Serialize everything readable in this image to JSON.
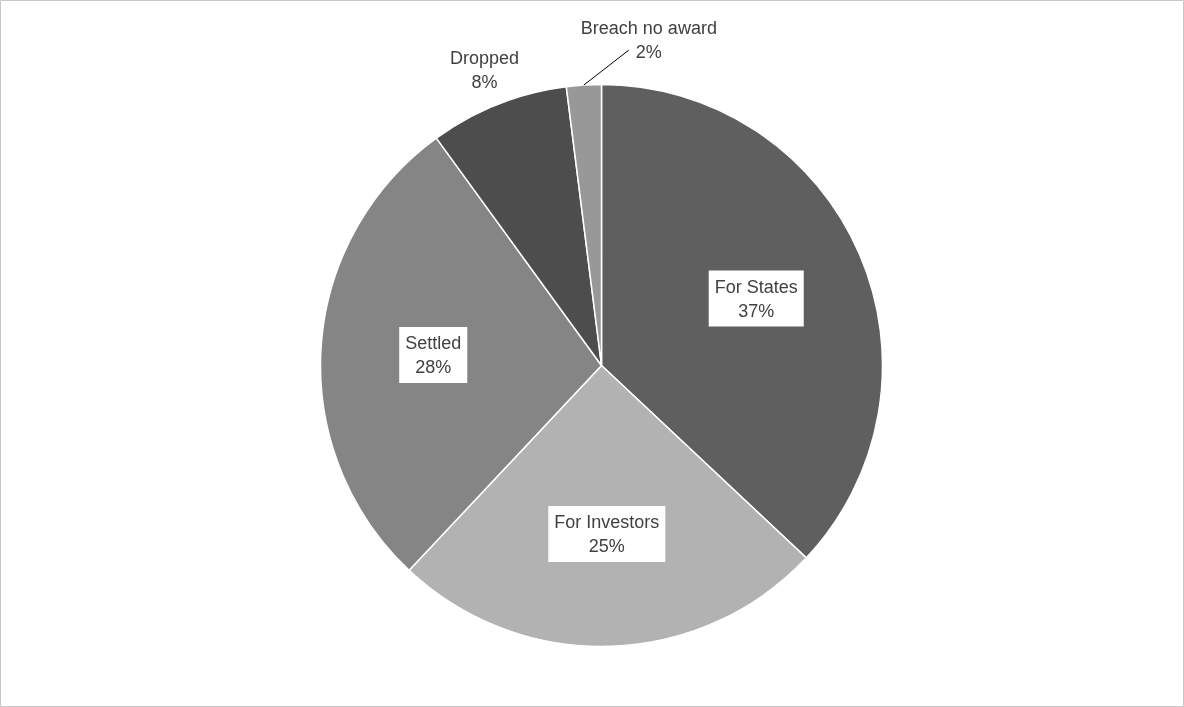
{
  "chart_data": {
    "type": "pie",
    "categories": [
      "For States",
      "For Investors",
      "Settled",
      "Dropped",
      "Breach no award"
    ],
    "values": [
      37,
      25,
      28,
      8,
      2
    ],
    "colors": [
      "#5f5f5f",
      "#b2b2b2",
      "#858585",
      "#4d4d4d",
      "#989898"
    ],
    "value_labels": [
      "37%",
      "25%",
      "28%",
      "8%",
      "2%"
    ]
  }
}
